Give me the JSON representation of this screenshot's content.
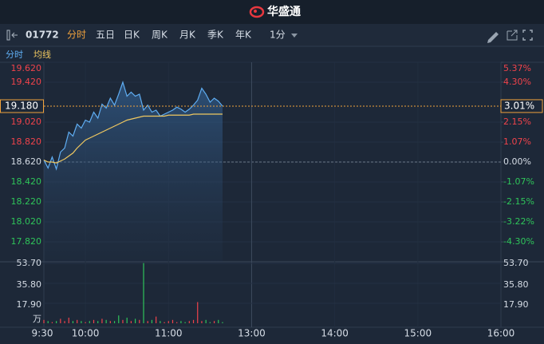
{
  "header": {
    "brand": "华盛通"
  },
  "toolbar": {
    "code": "01772",
    "tabs": [
      "分时",
      "五日",
      "日K",
      "周K",
      "月K",
      "季K",
      "年K"
    ],
    "period": "1分"
  },
  "chart_data": {
    "type": "line",
    "x": [
      "9:30",
      "9:33",
      "9:36",
      "9:39",
      "9:42",
      "9:45",
      "9:48",
      "9:51",
      "9:54",
      "9:57",
      "10:00",
      "10:03",
      "10:06",
      "10:09",
      "10:12",
      "10:15",
      "10:18",
      "10:21",
      "10:24",
      "10:27",
      "10:30",
      "10:33",
      "10:36",
      "10:39",
      "10:42",
      "10:45",
      "10:48",
      "10:51",
      "10:54",
      "10:57",
      "11:00",
      "11:03",
      "11:06",
      "11:09",
      "11:12",
      "11:15",
      "11:18",
      "11:21",
      "11:24",
      "11:27",
      "11:30",
      "11:33",
      "11:36",
      "11:39"
    ],
    "series": [
      {
        "name": "分时",
        "color": "#5fadf2",
        "values": [
          18.64,
          18.56,
          18.67,
          18.55,
          18.72,
          18.76,
          18.92,
          18.88,
          19.0,
          18.96,
          19.04,
          19.02,
          19.12,
          19.06,
          19.2,
          19.16,
          19.26,
          19.19,
          19.3,
          19.42,
          19.28,
          19.32,
          19.28,
          19.3,
          19.14,
          19.19,
          19.12,
          19.14,
          19.08,
          19.1,
          19.12,
          19.14,
          19.17,
          19.15,
          19.12,
          19.15,
          19.19,
          19.24,
          19.36,
          19.3,
          19.22,
          19.26,
          19.23,
          19.18
        ]
      },
      {
        "name": "均线",
        "color": "#f0c860",
        "values": [
          18.64,
          18.62,
          18.62,
          18.61,
          18.63,
          18.65,
          18.68,
          18.71,
          18.76,
          18.8,
          18.84,
          18.86,
          18.88,
          18.9,
          18.92,
          18.94,
          18.96,
          18.98,
          19.0,
          19.02,
          19.04,
          19.05,
          19.06,
          19.07,
          19.08,
          19.08,
          19.08,
          19.08,
          19.08,
          19.08,
          19.09,
          19.09,
          19.09,
          19.09,
          19.09,
          19.09,
          19.1,
          19.1,
          19.1,
          19.1,
          19.1,
          19.1,
          19.1,
          19.1
        ]
      }
    ],
    "ylim": [
      17.62,
      19.62
    ],
    "yticks": [
      {
        "value": 19.62,
        "label": "19.620"
      },
      {
        "value": 19.42,
        "label": "19.420"
      },
      {
        "value": 19.02,
        "label": "19.020"
      },
      {
        "value": 18.82,
        "label": "18.820"
      },
      {
        "value": 18.62,
        "label": "18.620"
      },
      {
        "value": 18.42,
        "label": "18.420"
      },
      {
        "value": 18.22,
        "label": "18.220"
      },
      {
        "value": 18.02,
        "label": "18.020"
      },
      {
        "value": 17.82,
        "label": "17.820"
      }
    ],
    "y2lim": [
      -5.37,
      5.37
    ],
    "y2ticks": [
      {
        "value": 5.37,
        "label": "5.37%"
      },
      {
        "value": 4.3,
        "label": "4.30%"
      },
      {
        "value": 2.15,
        "label": "2.15%"
      },
      {
        "value": 1.07,
        "label": "1.07%"
      },
      {
        "value": 0,
        "label": "0.00%"
      },
      {
        "value": -1.07,
        "label": "-1.07%"
      },
      {
        "value": -2.15,
        "label": "-2.15%"
      },
      {
        "value": -3.22,
        "label": "-3.22%"
      },
      {
        "value": -4.3,
        "label": "-4.30%"
      }
    ],
    "xticks": [
      "9:30",
      "10:00",
      "11:00",
      "13:00",
      "14:00",
      "15:00",
      "16:00"
    ],
    "last_price": {
      "value": 19.18,
      "label": "19.180"
    },
    "last_change": {
      "value": 3.01,
      "label": "3.01%"
    },
    "up_color": "#f0434b",
    "down_color": "#2fc45a",
    "volume": {
      "type": "bar",
      "values": [
        3,
        2,
        1,
        2,
        4,
        2,
        5,
        2,
        3,
        2,
        1,
        2,
        3,
        2,
        4,
        3,
        2,
        2,
        7,
        3,
        5,
        2,
        4,
        3,
        54,
        2,
        3,
        6,
        2,
        1,
        2,
        3,
        1,
        2,
        1,
        2,
        3,
        19,
        2,
        3,
        1,
        2,
        3,
        1
      ],
      "colors": [
        "#f0434b",
        "#2fc45a",
        "#f0434b",
        "#2fc45a",
        "#f0434b",
        "#f0434b",
        "#f0434b",
        "#2fc45a",
        "#f0434b",
        "#2fc45a",
        "#f0434b",
        "#2fc45a",
        "#f0434b",
        "#2fc45a",
        "#f0434b",
        "#2fc45a",
        "#f0434b",
        "#2fc45a",
        "#2fc45a",
        "#f0434b",
        "#2fc45a",
        "#f0434b",
        "#2fc45a",
        "#f0434b",
        "#2fc45a",
        "#f0434b",
        "#2fc45a",
        "#f0434b",
        "#2fc45a",
        "#f0434b",
        "#f0434b",
        "#f0434b",
        "#f0434b",
        "#2fc45a",
        "#2fc45a",
        "#f0434b",
        "#f0434b",
        "#f0434b",
        "#f0434b",
        "#2fc45a",
        "#2fc45a",
        "#f0434b",
        "#2fc45a",
        "#2fc45a"
      ],
      "ylim": [
        0,
        53.7
      ],
      "yticks": [
        {
          "value": 53.7,
          "label": "53.70"
        },
        {
          "value": 35.8,
          "label": "35.80"
        },
        {
          "value": 17.9,
          "label": "17.90"
        }
      ],
      "unit": "万"
    }
  }
}
